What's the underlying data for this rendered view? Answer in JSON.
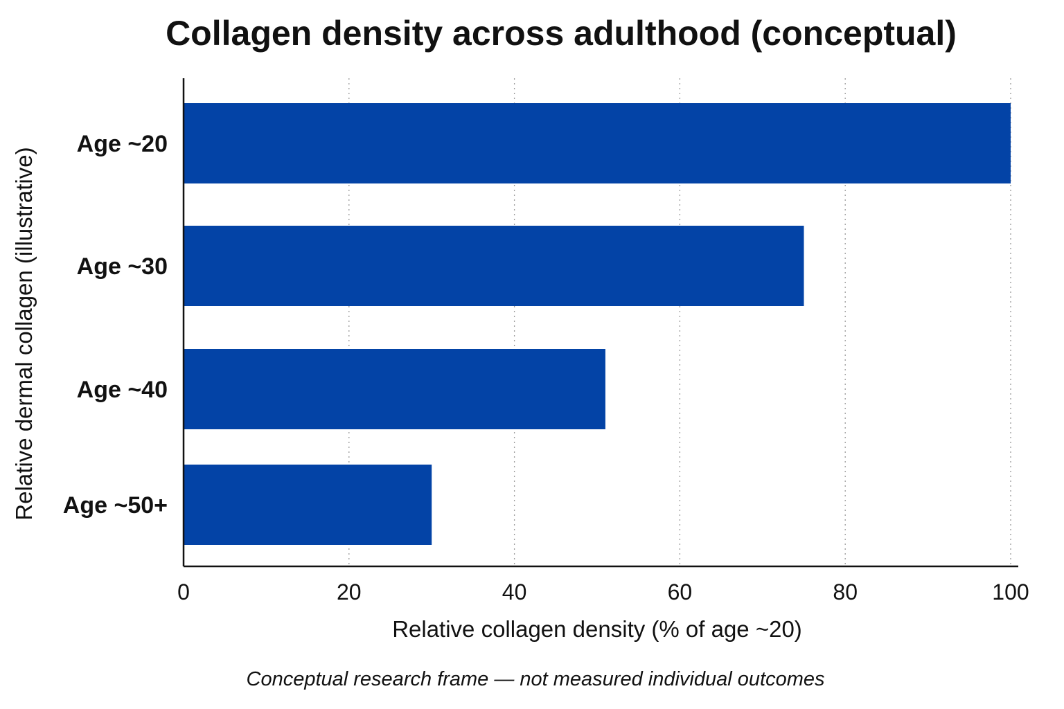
{
  "chart_data": {
    "type": "bar",
    "orientation": "horizontal",
    "title": "Collagen density across adulthood (conceptual)",
    "xlabel": "Relative collagen density (% of age ~20)",
    "ylabel": "Relative dermal collagen (illustrative)",
    "categories": [
      "Age ~20",
      "Age ~30",
      "Age ~40",
      "Age ~50+"
    ],
    "values": [
      100,
      75,
      51,
      30
    ],
    "xlim": [
      0,
      100
    ],
    "xticks": [
      "0",
      "20",
      "40",
      "60",
      "80",
      "100"
    ],
    "xtick_values": [
      0,
      20,
      40,
      60,
      80,
      100
    ],
    "grid": "vertical-dotted",
    "legend": "none",
    "bar_color": "#0343A6",
    "footnote": "Conceptual research frame — not measured individual outcomes"
  }
}
